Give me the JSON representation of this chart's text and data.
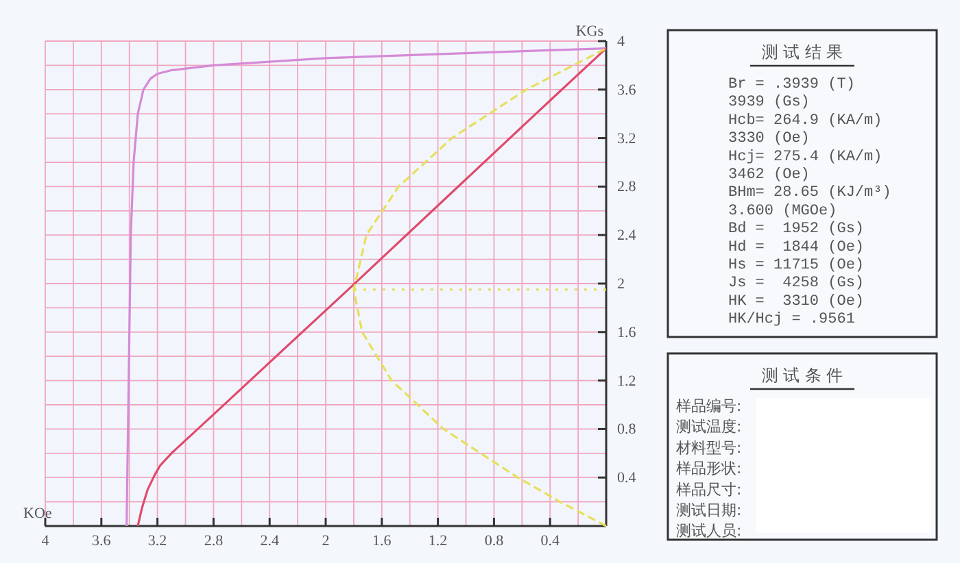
{
  "chart_data": {
    "type": "line",
    "xlabel": "KOe",
    "ylabel": "KGs",
    "xlim": [
      4,
      0
    ],
    "ylim": [
      0,
      4
    ],
    "xticks": [
      4,
      {
        "value": 3.8,
        "label": null
      },
      3.6,
      {
        "value": 3.4,
        "label": null
      },
      3.2,
      {
        "value": 3.0,
        "label": null
      },
      2.8,
      {
        "value": 2.6,
        "label": null
      },
      2.4,
      {
        "value": 2.2,
        "label": null
      },
      2,
      {
        "value": 1.8,
        "label": null
      },
      1.6,
      {
        "value": 1.4,
        "label": null
      },
      1.2,
      {
        "value": 1.0,
        "label": null
      },
      0.8,
      {
        "value": 0.6,
        "label": null
      },
      0.4,
      {
        "value": 0.2,
        "label": null
      }
    ],
    "yticks": [
      {
        "value": 0.2,
        "label": null
      },
      0.4,
      {
        "value": 0.6,
        "label": null
      },
      0.8,
      {
        "value": 1.0,
        "label": null
      },
      1.2,
      {
        "value": 1.4,
        "label": null
      },
      1.6,
      {
        "value": 1.8,
        "label": null
      },
      2,
      {
        "value": 2.2,
        "label": null
      },
      2.4,
      {
        "value": 2.6,
        "label": null
      },
      2.8,
      {
        "value": 3.0,
        "label": null
      },
      3.2,
      {
        "value": 3.4,
        "label": null
      },
      3.6,
      {
        "value": 3.8,
        "label": null
      },
      4
    ],
    "grid": true,
    "marker": "none",
    "series": [
      {
        "color": "#d58ad6",
        "line_style": "solid",
        "x": [
          0,
          0.4,
          1.0,
          2.0,
          2.8,
          3.1,
          3.2,
          3.25,
          3.3,
          3.34,
          3.37,
          3.39,
          3.4,
          3.41,
          3.42
        ],
        "values": [
          3.94,
          3.925,
          3.9,
          3.86,
          3.8,
          3.76,
          3.73,
          3.69,
          3.6,
          3.4,
          3.0,
          2.4,
          1.6,
          0.8,
          0
        ]
      },
      {
        "color": "#e04a6c",
        "line_style": "solid",
        "x": [
          0,
          0.4,
          1.0,
          1.84,
          2.4,
          2.8,
          3.1,
          3.18,
          3.22,
          3.27,
          3.31,
          3.34
        ],
        "values": [
          3.94,
          3.51,
          2.86,
          1.95,
          1.35,
          0.92,
          0.6,
          0.5,
          0.42,
          0.3,
          0.15,
          0
        ]
      },
      {
        "color": "#e6df5c",
        "line_style": "dashed",
        "x": [
          0,
          0.33,
          0.63,
          1.16,
          1.53,
          1.74,
          1.8,
          1.71,
          1.48,
          1.1,
          0.57,
          0
        ],
        "values": [
          0,
          0.2,
          0.4,
          0.8,
          1.2,
          1.6,
          1.95,
          2.4,
          2.8,
          3.2,
          3.6,
          3.94
        ]
      },
      {
        "color": "#e6df5c",
        "line_style": "dotted",
        "x": [
          1.8,
          0
        ],
        "values": [
          1.95,
          1.95
        ]
      }
    ],
    "annotations": [
      "测 试 结 果",
      "Br = .3939 (T)",
      "3939 (Gs)",
      "Hcb= 264.9 (KA/m)",
      "3330 (Oe)",
      "Hcj= 275.4 (KA/m)",
      "3462 (Oe)",
      "BHm= 28.65 (KJ/m³)",
      "3.600 (MGOe)",
      "Bd =  1952 (Gs)",
      "Hd =  1844 (Oe)",
      "Hs = 11715 (Oe)",
      "Js =  4258 (Gs)",
      "HK =  3310 (Oe)",
      "HK/Hcj = .9561",
      "测 试 条 件",
      "样品编号:",
      "测试温度:",
      "材料型号:",
      "样品形状:",
      "样品尺寸:",
      "测试日期:",
      "测试人员:"
    ]
  }
}
